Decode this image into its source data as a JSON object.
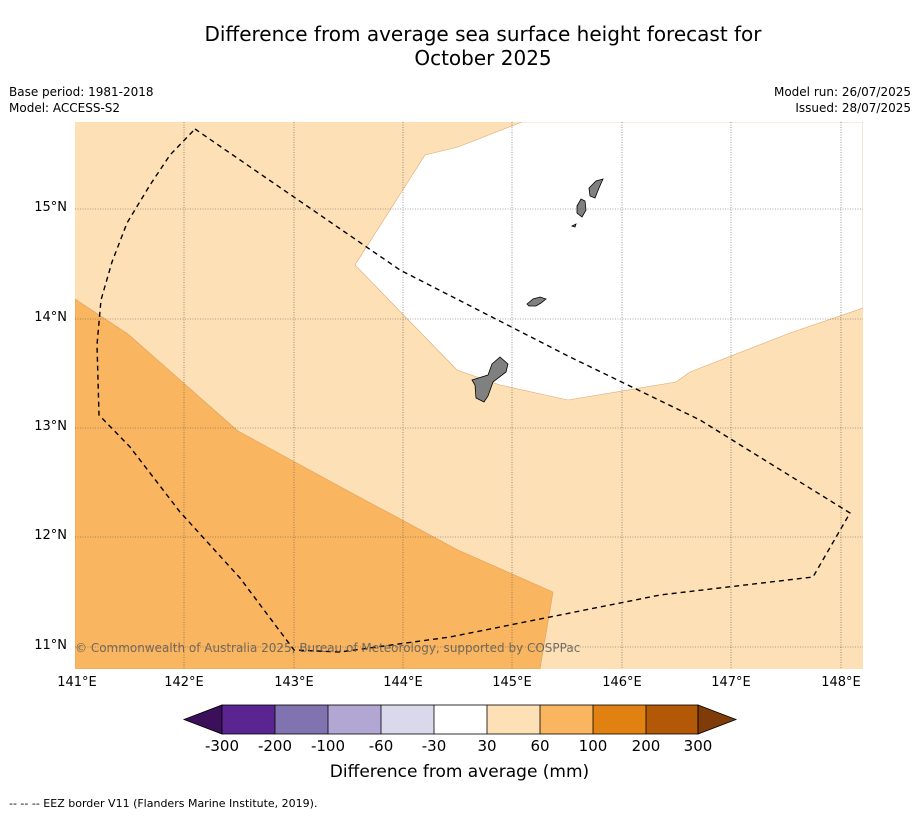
{
  "title": {
    "line1": "Difference from average sea surface height forecast for",
    "line2": "October 2025"
  },
  "meta": {
    "base_period": "Base period: 1981-2018",
    "model": "Model: ACCESS-S2",
    "model_run": "Model run: 26/07/2025",
    "issued": "Issued: 28/07/2025"
  },
  "map": {
    "lat_ticks": [
      "15°N",
      "14°N",
      "13°N",
      "12°N",
      "11°N"
    ],
    "lon_ticks": [
      "141°E",
      "142°E",
      "143°E",
      "144°E",
      "145°E",
      "146°E",
      "147°E",
      "148°E"
    ],
    "copyright": "© Commonwealth of Australia 2025, Bureau of Meteorology, supported by COSPPac",
    "colors": {
      "band_30_60": "#fde0b5",
      "band_60_100": "#f9b55f",
      "land": "#808080",
      "eez_line": "#000000",
      "grid": "#555555"
    },
    "regions": [
      {
        "name": "30 to 60 mm",
        "color": "#fde0b5"
      },
      {
        "name": "60 to 100 mm",
        "color": "#f9b55f"
      },
      {
        "name": "-30 to 30 mm",
        "color": "#ffffff"
      }
    ]
  },
  "colorbar": {
    "ticks": [
      "-300",
      "-200",
      "-100",
      "-60",
      "-30",
      "30",
      "60",
      "100",
      "200",
      "300"
    ],
    "colors": [
      "#3b0f59",
      "#5a2590",
      "#8173b0",
      "#b1a7d2",
      "#d9d9eb",
      "#ffffff",
      "#fde0b5",
      "#f9b55f",
      "#e08112",
      "#b35806",
      "#7f3b08"
    ],
    "label": "Difference from average (mm)"
  },
  "footnote": "--  --  -- EEZ border V11 (Flanders Marine Institute, 2019)."
}
